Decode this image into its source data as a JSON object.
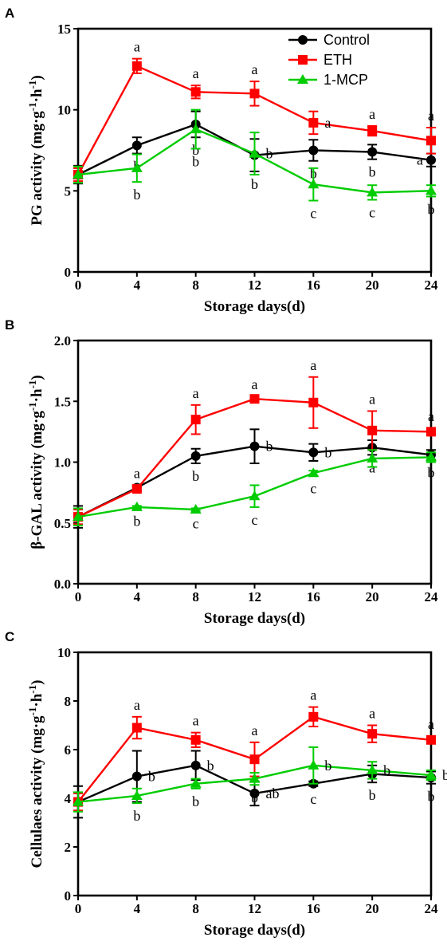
{
  "chart_data": [
    {
      "type": "line",
      "panel_label": "A",
      "xlabel": "Storage days(d)",
      "ylabel_main": "PG activity (mg·g",
      "ylabel_mid": "·h",
      "ylabel_close": ")",
      "ylabel_sup": "-1",
      "x": [
        0,
        4,
        8,
        12,
        16,
        20,
        24
      ],
      "xlim": [
        0,
        24
      ],
      "ylim": [
        0,
        15
      ],
      "xticks": [
        "0",
        "4",
        "8",
        "12",
        "16",
        "20",
        "24"
      ],
      "yticks": [
        "0",
        "5",
        "10",
        "15"
      ],
      "legend_position": "top-right",
      "series": [
        {
          "name": "Control",
          "color": "#000000",
          "marker": "circle",
          "values": [
            6.0,
            7.8,
            9.1,
            7.2,
            7.5,
            7.4,
            6.9
          ],
          "errors": [
            0.55,
            0.5,
            0.8,
            1.0,
            0.65,
            0.45,
            0.4
          ],
          "letters": [
            "",
            "b",
            "b",
            "b",
            "b",
            "b",
            "a"
          ]
        },
        {
          "name": "ETH",
          "color": "#ff0000",
          "marker": "square",
          "values": [
            6.0,
            12.7,
            11.1,
            11.0,
            9.2,
            8.7,
            8.1
          ],
          "errors": [
            0.4,
            0.45,
            0.4,
            0.75,
            0.7,
            0.3,
            0.8
          ],
          "letters": [
            "",
            "a",
            "a",
            "a",
            "a",
            "a",
            "a"
          ]
        },
        {
          "name": "1-MCP",
          "color": "#00cc00",
          "marker": "triangle",
          "values": [
            6.0,
            6.4,
            8.8,
            7.3,
            5.4,
            4.9,
            5.0
          ],
          "errors": [
            0.5,
            0.85,
            1.2,
            1.3,
            1.0,
            0.45,
            0.35
          ],
          "letters": [
            "",
            "b",
            "b",
            "b",
            "c",
            "c",
            "b"
          ]
        }
      ]
    },
    {
      "type": "line",
      "panel_label": "B",
      "xlabel": "Storage days(d)",
      "ylabel_main": "β-GAL activity (mg·g",
      "ylabel_mid": "·h",
      "ylabel_close": ")",
      "ylabel_sup": "-1",
      "x": [
        0,
        4,
        8,
        12,
        16,
        20,
        24
      ],
      "xlim": [
        0,
        24
      ],
      "ylim": [
        0,
        2.0
      ],
      "xticks": [
        "0",
        "4",
        "8",
        "12",
        "16",
        "20",
        "24"
      ],
      "yticks": [
        "0.0",
        "0.5",
        "1.0",
        "1.5",
        "2.0"
      ],
      "series": [
        {
          "name": "Control",
          "color": "#000000",
          "marker": "circle",
          "values": [
            0.55,
            0.79,
            1.05,
            1.13,
            1.08,
            1.12,
            1.06
          ],
          "errors": [
            0.09,
            0.02,
            0.06,
            0.14,
            0.07,
            0.06,
            0.04
          ],
          "letters": [
            "",
            "a",
            "b",
            "b",
            "b",
            "a",
            "b"
          ]
        },
        {
          "name": "ETH",
          "color": "#ff0000",
          "marker": "square",
          "values": [
            0.55,
            0.78,
            1.35,
            1.52,
            1.49,
            1.26,
            1.25
          ],
          "errors": [
            0.06,
            0.02,
            0.12,
            0.02,
            0.21,
            0.16,
            0.03
          ],
          "letters": [
            "",
            "",
            "a",
            "a",
            "a",
            "a",
            "a"
          ]
        },
        {
          "name": "1-MCP",
          "color": "#00cc00",
          "marker": "triangle",
          "values": [
            0.55,
            0.63,
            0.61,
            0.72,
            0.91,
            1.03,
            1.04
          ],
          "errors": [
            0.07,
            0.01,
            0.01,
            0.09,
            0.02,
            0.07,
            0.04
          ],
          "letters": [
            "",
            "b",
            "c",
            "c",
            "c",
            "",
            ""
          ]
        }
      ]
    },
    {
      "type": "line",
      "panel_label": "C",
      "xlabel": "Storage days(d)",
      "ylabel_main": "Cellulaes activity (mg·g",
      "ylabel_mid": "·h",
      "ylabel_close": ")",
      "ylabel_sup": "-1",
      "x": [
        0,
        4,
        8,
        12,
        16,
        20,
        24
      ],
      "xlim": [
        0,
        24
      ],
      "ylim": [
        0,
        10
      ],
      "xticks": [
        "0",
        "4",
        "8",
        "12",
        "16",
        "20",
        "24"
      ],
      "yticks": [
        "0",
        "2",
        "4",
        "6",
        "8",
        "10"
      ],
      "series": [
        {
          "name": "Control",
          "color": "#000000",
          "marker": "circle",
          "values": [
            3.85,
            4.9,
            5.35,
            4.2,
            4.6,
            5.0,
            4.85
          ],
          "errors": [
            0.65,
            1.05,
            0.6,
            0.5,
            0.1,
            0.35,
            0.25
          ],
          "letters": [
            "",
            "b",
            "b",
            "ab",
            "c",
            "b",
            "b"
          ]
        },
        {
          "name": "ETH",
          "color": "#ff0000",
          "marker": "square",
          "values": [
            3.85,
            6.9,
            6.4,
            5.6,
            7.35,
            6.65,
            6.4
          ],
          "errors": [
            0.35,
            0.45,
            0.3,
            0.7,
            0.4,
            0.35,
            0.15
          ],
          "letters": [
            "",
            "a",
            "a",
            "a",
            "a",
            "a",
            "a"
          ]
        },
        {
          "name": "1-MCP",
          "color": "#00cc00",
          "marker": "triangle",
          "values": [
            3.85,
            4.1,
            4.6,
            4.8,
            5.35,
            5.15,
            4.95
          ],
          "errors": [
            0.4,
            0.3,
            0.2,
            0.25,
            0.75,
            0.35,
            0.2
          ],
          "letters": [
            "",
            "b",
            "b",
            "b",
            "b",
            "b",
            "b"
          ]
        }
      ]
    }
  ]
}
